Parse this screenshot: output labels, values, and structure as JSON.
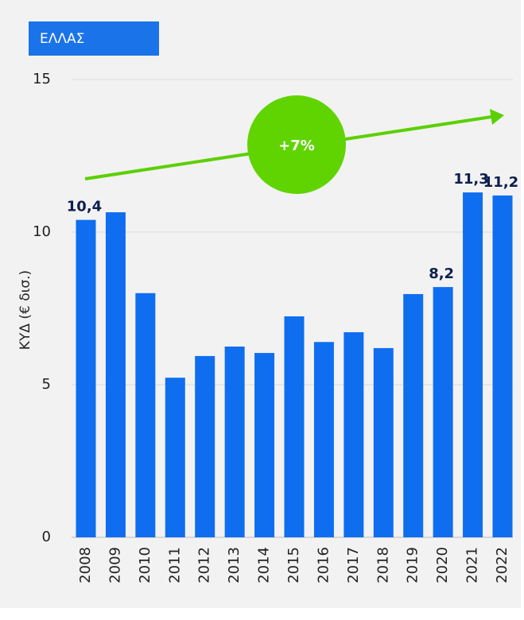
{
  "chart_data": {
    "type": "bar",
    "label": "ΕΛΛΑΣ",
    "annotation": "+7%",
    "y_label": "ΚΥΔ (€ δισ.)",
    "categories": [
      "2008",
      "2009",
      "2010",
      "2011",
      "2012",
      "2013",
      "2014",
      "2015",
      "2016",
      "2017",
      "2018",
      "2019",
      "2020",
      "2021",
      "2022"
    ],
    "values": [
      10.4,
      10.65,
      8.0,
      5.23,
      5.94,
      6.25,
      6.04,
      7.24,
      6.4,
      6.72,
      6.2,
      7.97,
      8.2,
      11.3,
      11.2
    ],
    "value_labels": [
      "10,4",
      null,
      null,
      null,
      null,
      null,
      null,
      null,
      null,
      null,
      null,
      null,
      "8,2",
      "11,3",
      "11,2"
    ],
    "color": "#0f6ef0",
    "ylim": [
      0,
      15
    ],
    "yticks": [
      0,
      5,
      10,
      15
    ],
    "grid": true
  }
}
